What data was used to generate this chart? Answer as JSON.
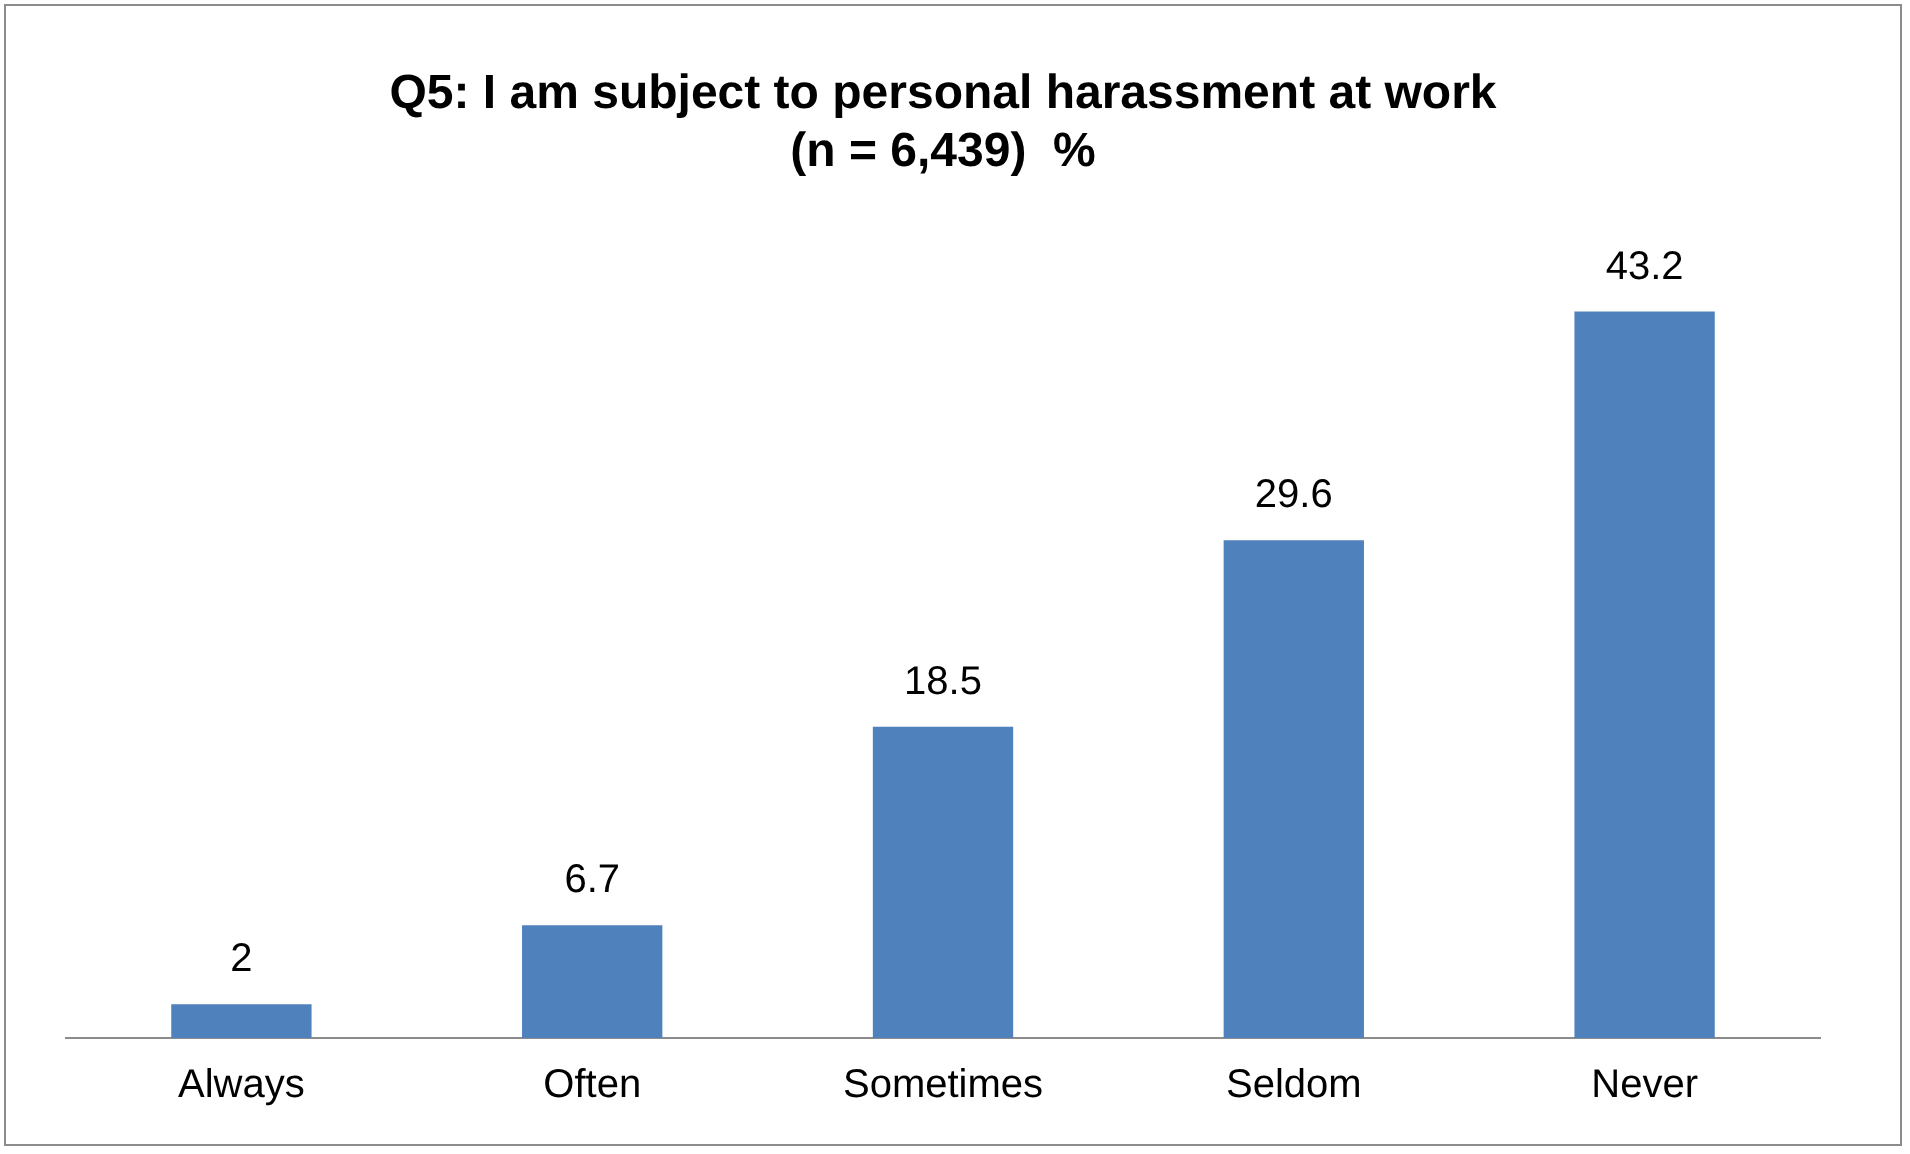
{
  "chart_data": {
    "type": "bar",
    "title": "Q5: I am subject to personal harassment at work\n(n = 6,439)  %",
    "categories": [
      "Always",
      "Often",
      "Sometimes",
      "Seldom",
      "Never"
    ],
    "values": [
      2,
      6.7,
      18.5,
      29.6,
      43.2
    ],
    "color": "#4f81bd",
    "data_labels": true,
    "grid": false,
    "legend": false
  }
}
